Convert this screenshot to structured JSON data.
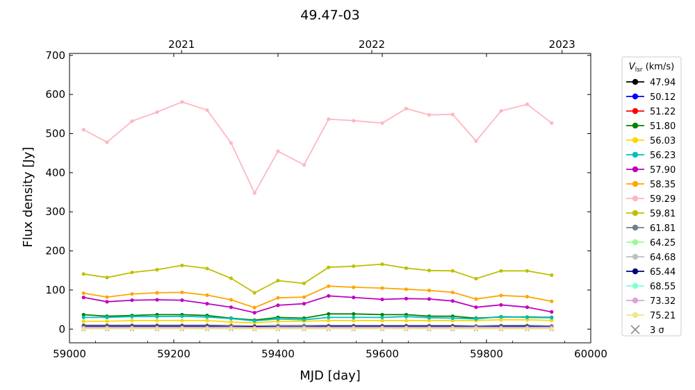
{
  "chart_data": {
    "type": "line",
    "title": "49.47-03",
    "xlabel": "MJD [day]",
    "ylabel": "Flux density [Jy]",
    "xlim": [
      59000,
      60000
    ],
    "ylim": [
      -35,
      705
    ],
    "x_ticks": [
      59000,
      59200,
      59400,
      59600,
      59800,
      60000
    ],
    "y_ticks": [
      0,
      100,
      200,
      300,
      400,
      500,
      600,
      700
    ],
    "top_axis": {
      "ticks": [
        {
          "x": 59215,
          "label": "2021"
        },
        {
          "x": 59580,
          "label": "2022"
        },
        {
          "x": 59945,
          "label": "2023"
        }
      ]
    },
    "grid": false,
    "legend": {
      "position": "outside-right",
      "title_main": "V",
      "title_sub": "lsr",
      "title_unit": " (km/s)",
      "sigma_label": "3 σ"
    },
    "x": [
      59027,
      59072,
      59120,
      59168,
      59216,
      59264,
      59310,
      59355,
      59400,
      59450,
      59497,
      59545,
      59600,
      59646,
      59690,
      59735,
      59780,
      59828,
      59878,
      59925
    ],
    "series": [
      {
        "name": "47.94",
        "color": "#000000",
        "values": [
          9,
          8,
          9,
          9,
          9,
          9,
          8,
          7,
          8,
          7,
          8,
          8,
          8,
          8,
          8,
          8,
          7,
          8,
          9,
          7
        ]
      },
      {
        "name": "50.12",
        "color": "#0000ff",
        "values": [
          6,
          5,
          6,
          6,
          6,
          6,
          5,
          5,
          5,
          5,
          6,
          6,
          6,
          6,
          6,
          6,
          5,
          6,
          6,
          5
        ]
      },
      {
        "name": "51.22",
        "color": "#ff0000",
        "values": [
          5,
          5,
          5,
          5,
          5,
          5,
          5,
          4,
          5,
          5,
          6,
          6,
          6,
          6,
          6,
          6,
          5,
          6,
          6,
          5
        ]
      },
      {
        "name": "51.80",
        "color": "#008000",
        "values": [
          37,
          33,
          35,
          37,
          37,
          35,
          28,
          23,
          30,
          28,
          39,
          39,
          37,
          37,
          33,
          33,
          28,
          31,
          31,
          30
        ]
      },
      {
        "name": "56.03",
        "color": "#ffd700",
        "values": [
          20,
          20,
          22,
          22,
          22,
          22,
          18,
          16,
          20,
          20,
          22,
          22,
          22,
          22,
          22,
          22,
          22,
          24,
          24,
          22
        ]
      },
      {
        "name": "56.23",
        "color": "#00bfbf",
        "values": [
          30,
          30,
          32,
          32,
          33,
          31,
          27,
          21,
          26,
          24,
          30,
          30,
          30,
          32,
          29,
          28,
          26,
          32,
          30,
          29
        ]
      },
      {
        "name": "57.90",
        "color": "#bf00bf",
        "values": [
          81,
          70,
          74,
          75,
          74,
          65,
          56,
          42,
          61,
          65,
          85,
          81,
          76,
          78,
          77,
          72,
          56,
          62,
          56,
          44
        ]
      },
      {
        "name": "58.35",
        "color": "#ffa500",
        "values": [
          92,
          82,
          90,
          93,
          94,
          87,
          75,
          55,
          80,
          82,
          110,
          107,
          105,
          102,
          99,
          94,
          77,
          86,
          83,
          71
        ]
      },
      {
        "name": "59.29",
        "color": "#ffb6c1",
        "values": [
          510,
          478,
          532,
          555,
          581,
          560,
          476,
          348,
          455,
          420,
          537,
          533,
          527,
          564,
          548,
          549,
          481,
          558,
          575,
          527
        ]
      },
      {
        "name": "59.81",
        "color": "#bfbf00",
        "values": [
          141,
          132,
          145,
          152,
          163,
          155,
          130,
          93,
          124,
          117,
          158,
          161,
          166,
          156,
          150,
          149,
          129,
          149,
          149,
          138
        ]
      },
      {
        "name": "61.81",
        "color": "#708090",
        "values": [
          10,
          10,
          10,
          10,
          10,
          10,
          9,
          8,
          9,
          9,
          9,
          9,
          9,
          9,
          9,
          9,
          8,
          9,
          9,
          8
        ]
      },
      {
        "name": "64.25",
        "color": "#98fb98",
        "values": [
          2,
          2,
          2,
          2,
          2,
          2,
          2,
          2,
          2,
          2,
          2,
          2,
          2,
          2,
          2,
          2,
          2,
          2,
          2,
          2
        ]
      },
      {
        "name": "64.68",
        "color": "#c0c0c0",
        "values": [
          4,
          4,
          4,
          4,
          4,
          4,
          4,
          3,
          4,
          4,
          4,
          4,
          4,
          4,
          4,
          4,
          4,
          4,
          4,
          4
        ]
      },
      {
        "name": "65.44",
        "color": "#000080",
        "values": [
          7,
          7,
          7,
          7,
          7,
          7,
          6,
          6,
          6,
          6,
          7,
          7,
          7,
          7,
          7,
          7,
          6,
          7,
          7,
          6
        ]
      },
      {
        "name": "68.55",
        "color": "#7fffd4",
        "values": [
          3,
          3,
          3,
          3,
          3,
          3,
          3,
          3,
          3,
          3,
          3,
          3,
          3,
          3,
          3,
          3,
          3,
          3,
          3,
          3
        ]
      },
      {
        "name": "73.32",
        "color": "#dda0dd",
        "values": [
          5,
          5,
          5,
          5,
          5,
          5,
          5,
          4,
          5,
          5,
          5,
          5,
          5,
          5,
          5,
          5,
          5,
          5,
          5,
          5
        ]
      },
      {
        "name": "75.21",
        "color": "#f0e68c",
        "values": [
          1,
          1,
          1,
          1,
          1,
          1,
          1,
          1,
          1,
          1,
          1,
          1,
          1,
          1,
          1,
          1,
          1,
          1,
          1,
          1
        ]
      }
    ],
    "sigma_markers": {
      "x": [
        59027,
        59072,
        59120,
        59168,
        59216,
        59264,
        59310,
        59355,
        59400,
        59450,
        59497,
        59545,
        59600,
        59646,
        59690,
        59735,
        59780,
        59828,
        59878,
        59925
      ],
      "y": 0,
      "color": "#808080"
    }
  }
}
